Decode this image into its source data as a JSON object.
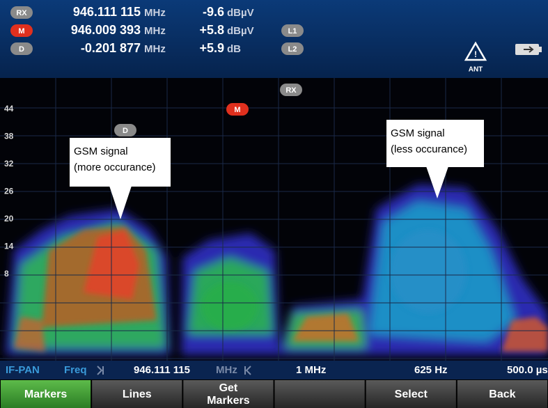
{
  "header": {
    "rows": [
      {
        "badge": "RX",
        "frequency": "946.111 115",
        "frequency_unit": "MHz",
        "level": "-9.6",
        "level_unit": "dBµV"
      },
      {
        "badge": "M",
        "frequency": "946.009 393",
        "frequency_unit": "MHz",
        "level": "+5.8",
        "level_unit": "dBµV",
        "line_badge": "L1"
      },
      {
        "badge": "D",
        "frequency": "-0.201 877",
        "frequency_unit": "MHz",
        "level": "+5.9",
        "level_unit": "dB",
        "line_badge": "L2"
      }
    ],
    "antenna_label": "ANT"
  },
  "display": {
    "y_labels": [
      "44",
      "38",
      "32",
      "26",
      "20",
      "14",
      "8"
    ],
    "markers": [
      "RX",
      "M",
      "D"
    ],
    "annotations": [
      {
        "lines": [
          "GSM signal",
          "(more occurance)"
        ]
      },
      {
        "lines": [
          "GSM signal",
          "(less occurance)"
        ]
      }
    ]
  },
  "status_bar": {
    "mode": "IF-PAN",
    "parameter": "Freq",
    "frequency": "946.111 115",
    "frequency_unit": "MHz",
    "span": "1 MHz",
    "resolution": "625 Hz",
    "time": "500.0 µs"
  },
  "softkeys": [
    "Markers",
    "Lines",
    "Get Markers",
    "Select",
    "Back"
  ]
}
